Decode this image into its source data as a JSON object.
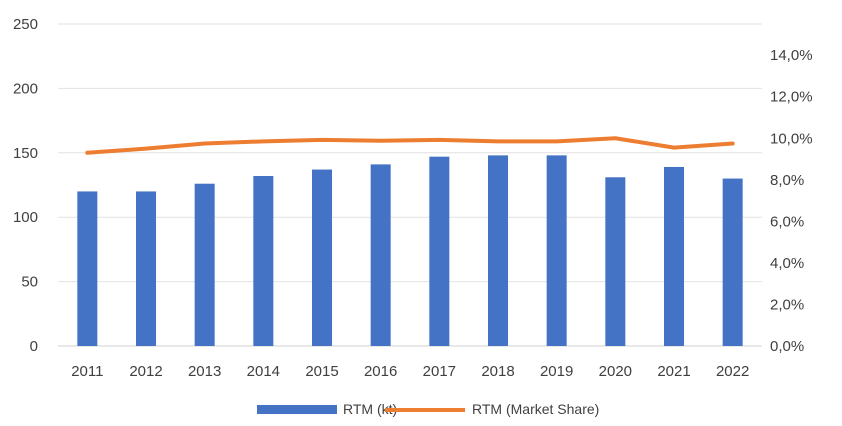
{
  "chart_data": {
    "type": "bar",
    "categories": [
      "2011",
      "2012",
      "2013",
      "2014",
      "2015",
      "2016",
      "2017",
      "2018",
      "2019",
      "2020",
      "2021",
      "2022"
    ],
    "series": [
      {
        "name": "RTM (kt)",
        "type": "bar",
        "axis": "left",
        "color": "#4472C4",
        "values": [
          120,
          120,
          126,
          132,
          137,
          141,
          147,
          148,
          148,
          131,
          139,
          130
        ]
      },
      {
        "name": "RTM (Market Share)",
        "type": "line",
        "axis": "right",
        "color": "#ED7D31",
        "values": [
          9.3,
          9.5,
          9.75,
          9.85,
          9.92,
          9.88,
          9.92,
          9.85,
          9.85,
          10.0,
          9.55,
          9.75
        ]
      }
    ],
    "y_left": {
      "ylim": [
        0,
        250
      ],
      "ticks": [
        "0",
        "50",
        "100",
        "150",
        "200",
        "250"
      ]
    },
    "y_right": {
      "ylim": [
        0,
        15.5
      ],
      "ticks": [
        "0,0%",
        "2,0%",
        "4,0%",
        "6,0%",
        "8,0%",
        "10,0%",
        "12,0%",
        "14,0%"
      ]
    },
    "grid": true,
    "legend": "bottom",
    "legend_labels": [
      "RTM (kt)",
      "RTM (Market Share)"
    ]
  }
}
